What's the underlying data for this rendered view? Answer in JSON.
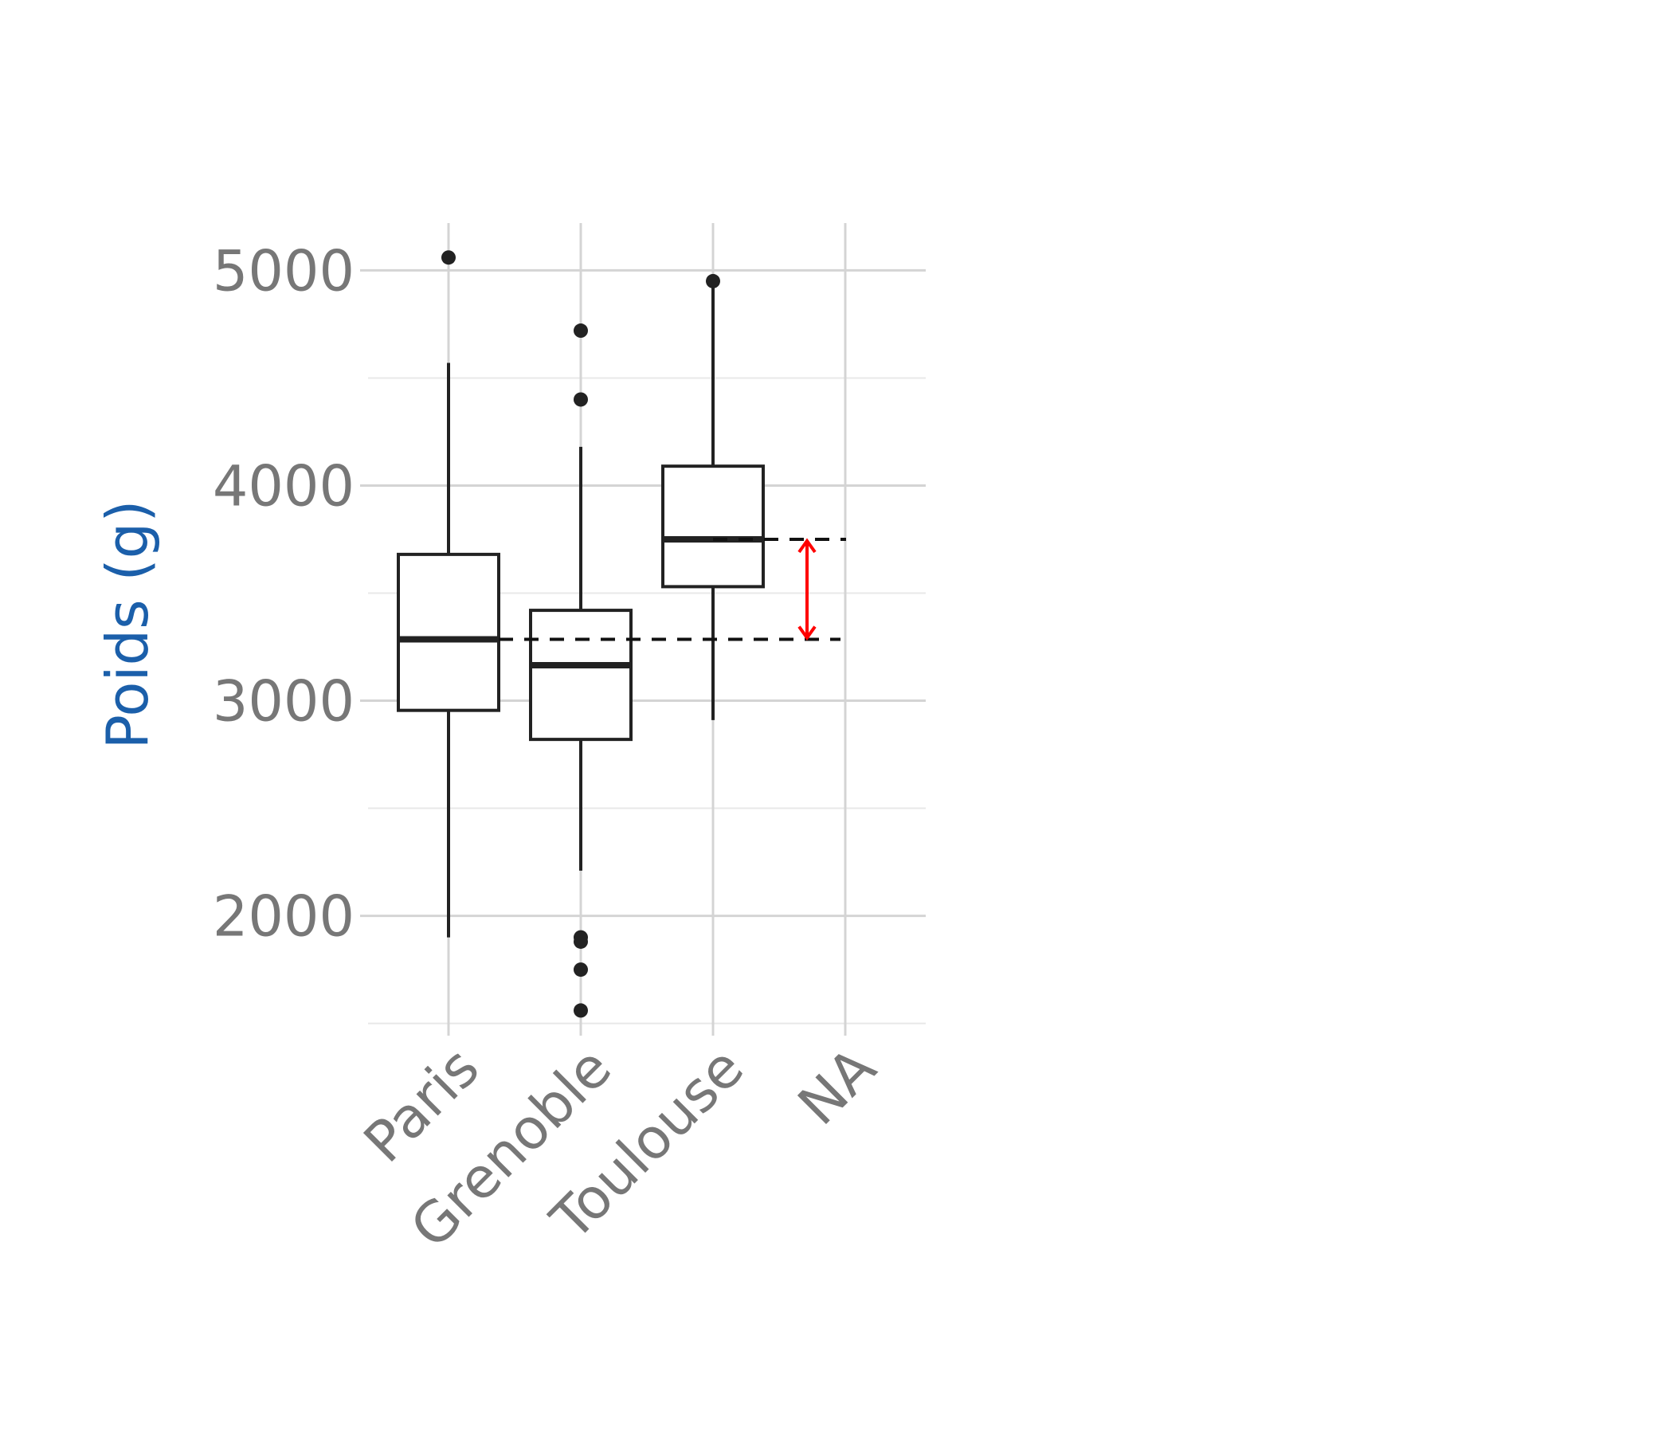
{
  "chart_data": {
    "type": "boxplot",
    "title": "",
    "xlabel": "",
    "ylabel": "Poids (g)",
    "ylim": [
      1480,
      5220
    ],
    "yticks": [
      2000,
      3000,
      4000,
      5000
    ],
    "ytick_labels": [
      "2000",
      "3000",
      "4000",
      "5000"
    ],
    "categories": [
      "Paris",
      "Grenoble",
      "Toulouse",
      "NA"
    ],
    "boxes": [
      {
        "category": "Paris",
        "q1": 2955,
        "median": 3285,
        "q3": 3680,
        "whisker_low": 1900,
        "whisker_high": 4570,
        "outliers": [
          5060
        ]
      },
      {
        "category": "Grenoble",
        "q1": 2820,
        "median": 3165,
        "q3": 3420,
        "whisker_low": 2210,
        "whisker_high": 4180,
        "outliers": [
          4720,
          4400,
          1900,
          1880,
          1750,
          1560
        ]
      },
      {
        "category": "Toulouse",
        "q1": 3530,
        "median": 3750,
        "q3": 4090,
        "whisker_low": 2910,
        "whisker_high": 4960,
        "outliers": [
          4950
        ]
      },
      {
        "category": "NA",
        "q1": null,
        "median": null,
        "q3": null,
        "whisker_low": null,
        "whisker_high": null,
        "outliers": []
      }
    ],
    "reference_lines": [
      {
        "from_category": "Paris",
        "value": 3285,
        "style": "dashed"
      },
      {
        "from_category": "Toulouse",
        "value": 3750,
        "style": "dashed"
      }
    ],
    "annotation": {
      "type": "double-arrow",
      "from_value": 3285,
      "to_value": 3750,
      "color": "#ff0000"
    },
    "grid": true,
    "legend": "none"
  }
}
